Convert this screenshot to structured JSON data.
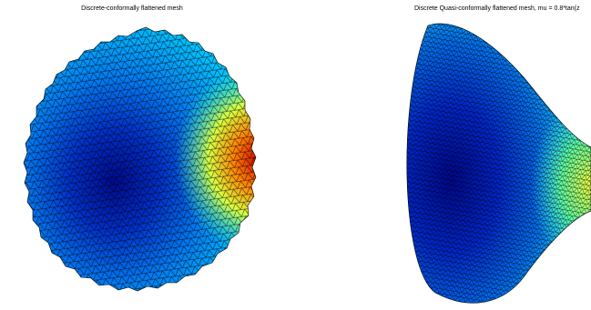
{
  "panels": [
    {
      "title": "Discrete-conformally flattened mesh"
    },
    {
      "title": "Discrete Quasi-conformally flattened mesh, mu = 0.8*tan(z"
    }
  ]
}
